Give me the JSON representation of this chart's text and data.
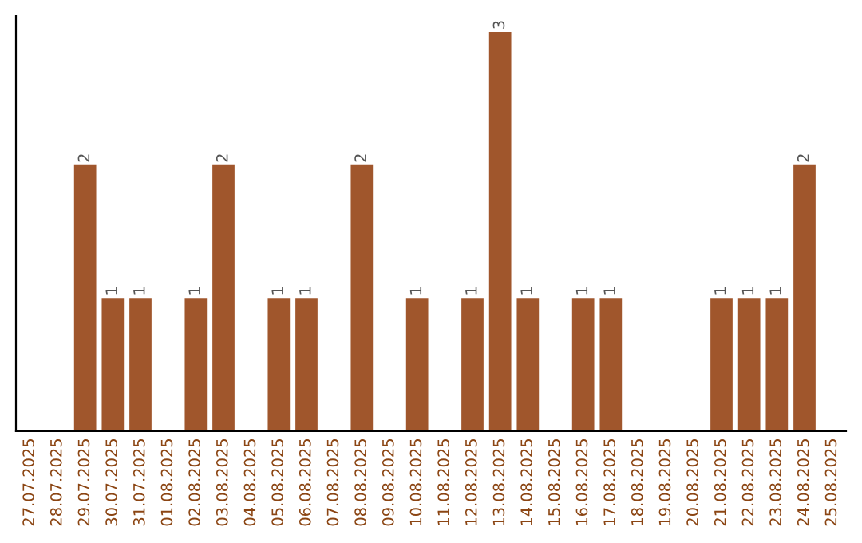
{
  "chart_data": {
    "type": "bar",
    "categories": [
      "27.07.2025",
      "28.07.2025",
      "29.07.2025",
      "30.07.2025",
      "31.07.2025",
      "01.08.2025",
      "02.08.2025",
      "03.08.2025",
      "04.08.2025",
      "05.08.2025",
      "06.08.2025",
      "07.08.2025",
      "08.08.2025",
      "09.08.2025",
      "10.08.2025",
      "11.08.2025",
      "12.08.2025",
      "13.08.2025",
      "14.08.2025",
      "15.08.2025",
      "16.08.2025",
      "17.08.2025",
      "18.08.2025",
      "19.08.2025",
      "20.08.2025",
      "21.08.2025",
      "22.08.2025",
      "23.08.2025",
      "24.08.2025",
      "25.08.2025"
    ],
    "values": [
      0,
      0,
      2,
      1,
      1,
      0,
      1,
      2,
      0,
      1,
      1,
      0,
      2,
      0,
      1,
      0,
      1,
      3,
      1,
      0,
      1,
      1,
      0,
      0,
      0,
      1,
      1,
      1,
      2,
      0
    ],
    "value_labels": [
      null,
      null,
      "2",
      "1",
      "1",
      null,
      "1",
      "2",
      null,
      "1",
      "1",
      null,
      "2",
      null,
      "1",
      null,
      "1",
      "3",
      "1",
      null,
      "1",
      "1",
      null,
      null,
      null,
      "1",
      "1",
      "1",
      "2",
      null
    ],
    "color": "#a0562c",
    "tick_labels": "x",
    "grid": false,
    "legend": false
  }
}
